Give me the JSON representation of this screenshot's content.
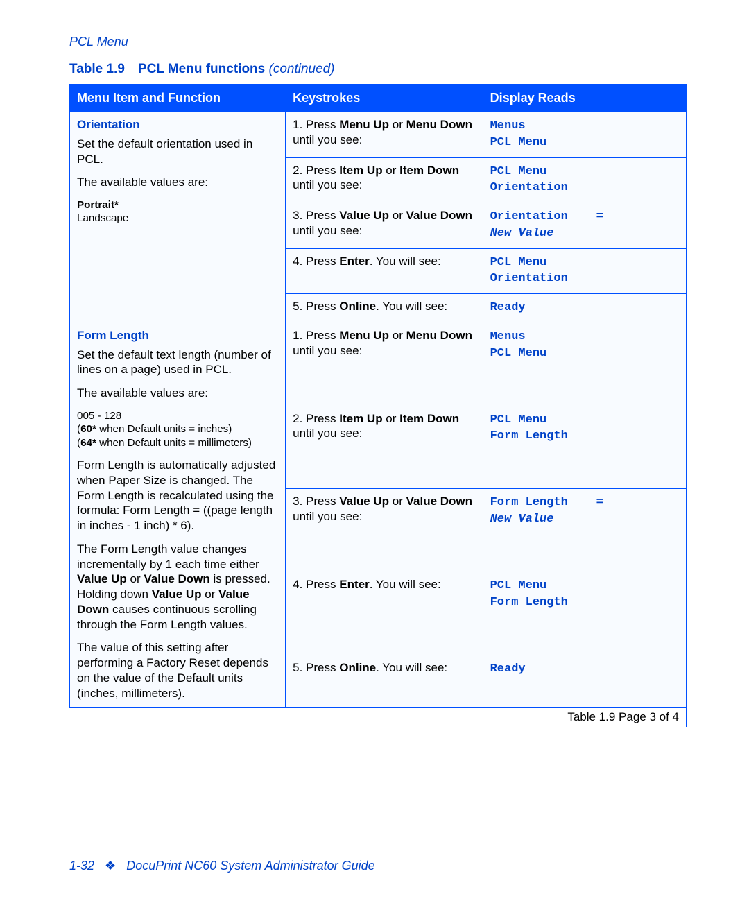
{
  "running_head": "PCL Menu",
  "table_caption_prefix": "Table 1.9 PCL Menu functions ",
  "table_caption_cont": "(continued)",
  "headers": {
    "c1": "Menu Item and Function",
    "c2": "Keystrokes",
    "c3": "Display Reads"
  },
  "orientation": {
    "title": "Orientation",
    "desc1": "Set the default orientation used in PCL.",
    "desc2": "The available values are:",
    "val1": "Portrait*",
    "val2": "Landscape"
  },
  "formlength": {
    "title": "Form Length",
    "desc1": "Set the default text length (number of lines on a page) used in PCL.",
    "desc2": "The available values are:",
    "vrange": "005 - 128",
    "vline1a": "(",
    "vline1b": "60*",
    "vline1c": " when Default units = inches)",
    "vline2a": "(",
    "vline2b": "64*",
    "vline2c": " when Default units = millimeters)",
    "auto": "Form Length is automatically adjusted when Paper Size is changed. The Form Length is recalculated using the formula: Form Length = ((page length in inches - 1 inch) * 6).",
    "increment_pre": "The Form Length value changes incrementally by 1 each time either ",
    "increment_b1": "Value Up",
    "increment_mid1": " or ",
    "increment_b2": "Value Down",
    "increment_mid2": " is pressed. Holding down ",
    "increment_b3": "Value Up",
    "increment_mid3": " or ",
    "increment_b4": "Value Down",
    "increment_post": " causes continuous scrolling through the Form Length values.",
    "reset": "The value of this setting after performing a Factory Reset depends on the value of the Default units (inches, millimeters)."
  },
  "ks": {
    "s1_pre": "1. Press ",
    "s1_b1": "Menu Up",
    "s1_mid": " or ",
    "s1_b2": "Menu Down",
    "s1_post": " until you see:",
    "s2_pre": "2. Press ",
    "s2_b1": "Item Up",
    "s2_mid": " or ",
    "s2_b2": "Item Down",
    "s2_post": " until you see:",
    "s3_pre": "3. Press ",
    "s3_b1": "Value Up",
    "s3_mid": " or ",
    "s3_b2": "Value Down",
    "s3_post": " until you see:",
    "s4_pre": "4. Press ",
    "s4_b1": "Enter",
    "s4_post": ". You will see:",
    "s5_pre": "5. Press ",
    "s5_b1": "Online",
    "s5_post": ". You will see:"
  },
  "disp": {
    "menus": "Menus\nPCL Menu",
    "pcl_orient": "PCL Menu\nOrientation",
    "orient_eq": "Orientation    =\n",
    "newvalue": "New Value",
    "ready": "Ready",
    "pcl_form": "PCL Menu\nForm Length",
    "form_eq": "Form Length    =\n"
  },
  "pager": "Table 1.9  Page 3 of 4",
  "footer": {
    "pagenum": "1-32",
    "diamond": "❖",
    "title": "DocuPrint NC60 System Administrator Guide"
  }
}
